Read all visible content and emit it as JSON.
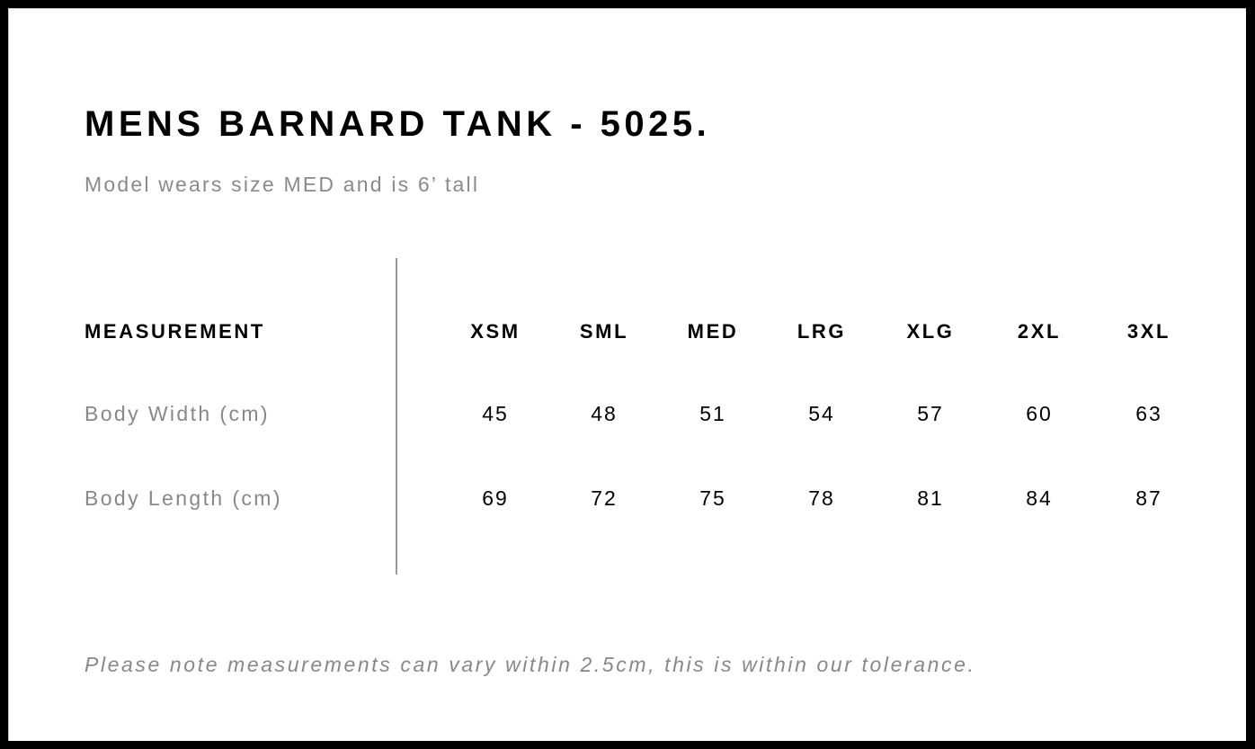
{
  "title": "MENS BARNARD TANK - 5025.",
  "subtitle": "Model wears size MED and is 6’ tall",
  "table": {
    "header_label": "MEASUREMENT",
    "sizes": [
      "XSM",
      "SML",
      "MED",
      "LRG",
      "XLG",
      "2XL",
      "3XL"
    ],
    "rows": [
      {
        "label": "Body Width (cm)",
        "values": [
          "45",
          "48",
          "51",
          "54",
          "57",
          "60",
          "63"
        ]
      },
      {
        "label": "Body Length (cm)",
        "values": [
          "69",
          "72",
          "75",
          "78",
          "81",
          "84",
          "87"
        ]
      }
    ]
  },
  "note": "Please note measurements can vary within 2.5cm, this is within our tolerance."
}
